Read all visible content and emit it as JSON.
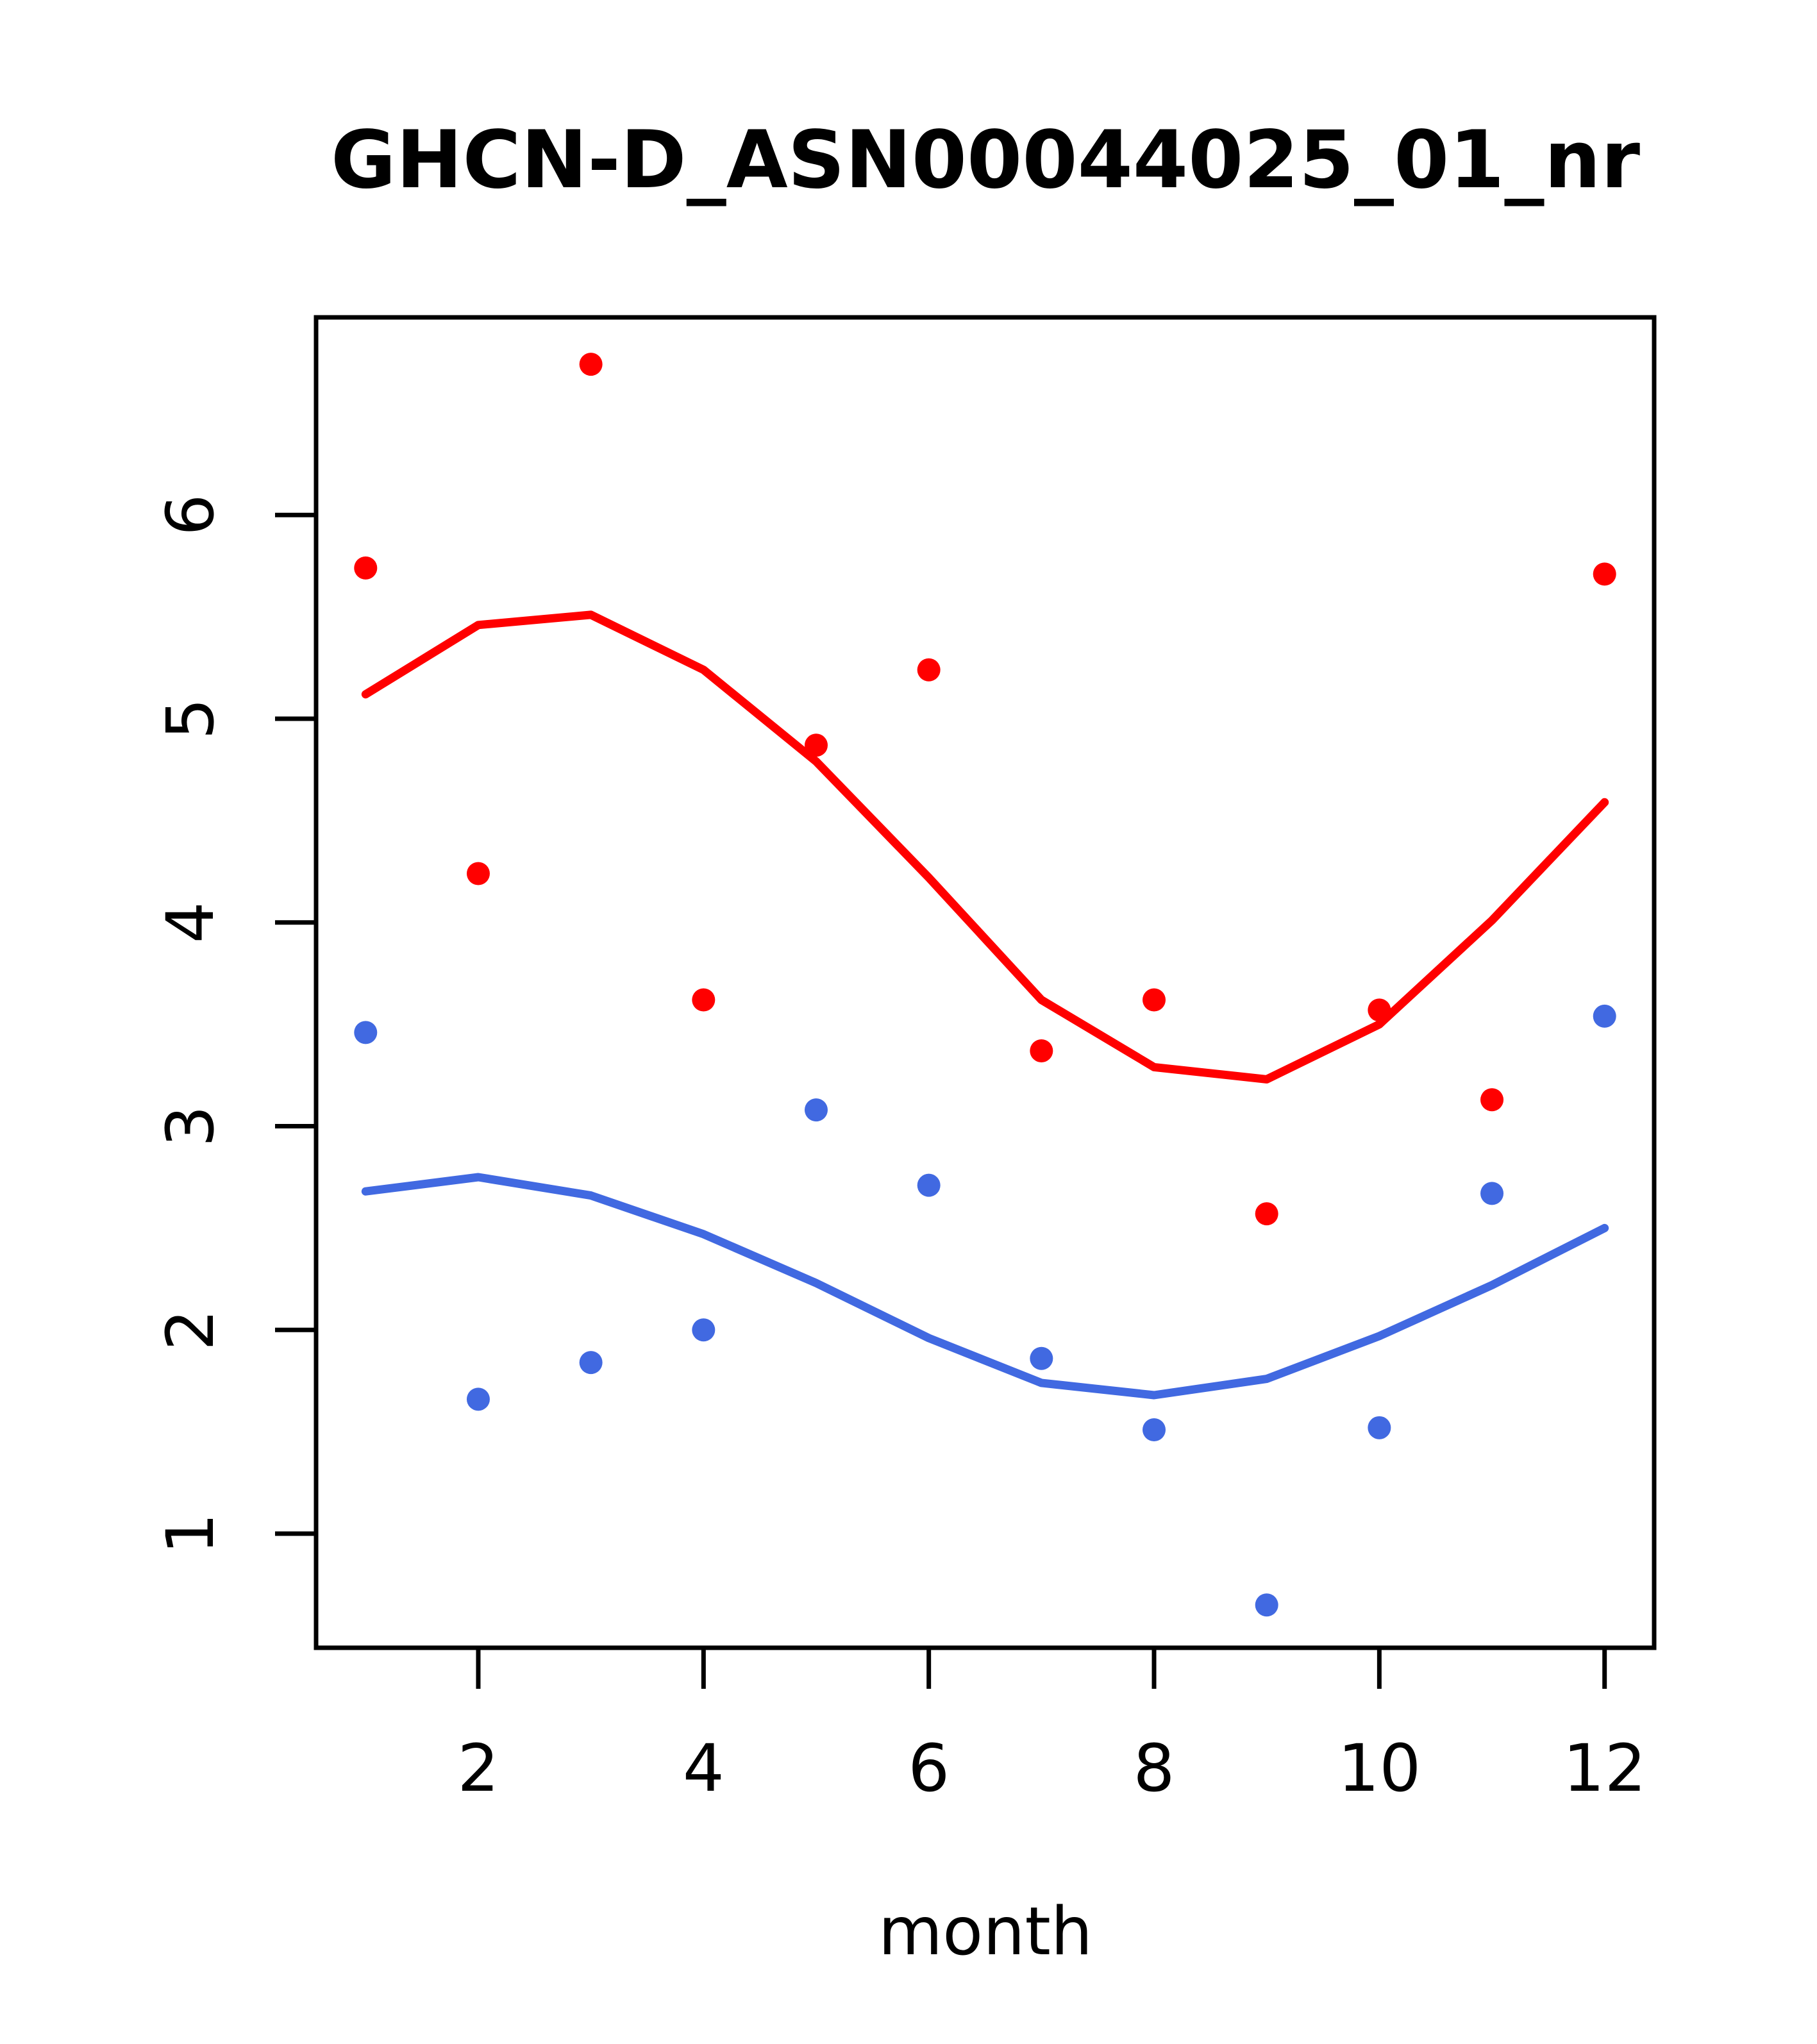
{
  "window": {
    "background": "#ffffff",
    "foreground": "#000000"
  },
  "chart_data": {
    "type": "scatter",
    "title": "GHCN-D_ASN00044025_01_nr",
    "xlabel": "month",
    "ylabel": "",
    "x": [
      1,
      2,
      3,
      4,
      5,
      6,
      7,
      8,
      9,
      10,
      11,
      12
    ],
    "series": [
      {
        "name": "red-points",
        "style": "points",
        "color": "#FF0000",
        "values": [
          5.74,
          4.24,
          6.74,
          3.62,
          4.87,
          5.24,
          3.37,
          3.62,
          2.57,
          3.57,
          3.13,
          5.71
        ]
      },
      {
        "name": "blue-points",
        "style": "points",
        "color": "#4169E1",
        "values": [
          3.46,
          1.66,
          1.84,
          2.0,
          3.08,
          2.71,
          1.86,
          1.51,
          0.65,
          1.52,
          2.67,
          3.54
        ]
      },
      {
        "name": "red-smooth-line",
        "style": "line",
        "color": "#FF0000",
        "values": [
          5.12,
          5.46,
          5.51,
          5.24,
          4.79,
          4.22,
          3.62,
          3.29,
          3.23,
          3.5,
          4.01,
          4.59
        ]
      },
      {
        "name": "blue-smooth-line",
        "style": "line",
        "color": "#4169E1",
        "values": [
          2.68,
          2.75,
          2.66,
          2.47,
          2.23,
          1.96,
          1.74,
          1.68,
          1.76,
          1.97,
          2.22,
          2.5
        ]
      }
    ],
    "xticks": [
      2,
      4,
      6,
      8,
      10,
      12
    ],
    "yticks": [
      1,
      2,
      3,
      4,
      5,
      6
    ],
    "xlim": [
      0.56,
      12.44
    ],
    "ylim": [
      0.44,
      6.97
    ],
    "grid": false,
    "legend": "none"
  }
}
